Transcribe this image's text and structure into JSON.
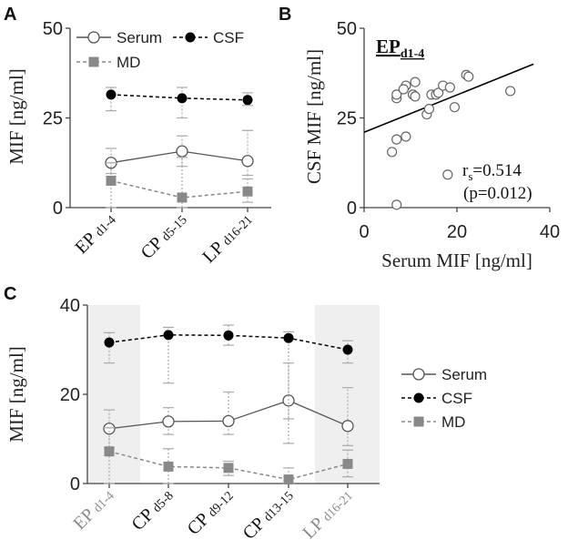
{
  "chart_data": [
    {
      "panel": "A",
      "type": "line",
      "ylabel": "MIF [ng/ml]",
      "ylim": [
        0,
        50
      ],
      "yticks": [
        "0",
        "25",
        "50"
      ],
      "categories": [
        {
          "main": "EP",
          "sub": "d1-4"
        },
        {
          "main": "CP",
          "sub": "d5-15"
        },
        {
          "main": "LP",
          "sub": "d16-21"
        }
      ],
      "series": [
        {
          "name": "Serum",
          "style": "solid",
          "marker": "open-circle",
          "color": "#555555",
          "values": [
            12.5,
            15.7,
            13.0
          ],
          "err_low": [
            9.5,
            11.5,
            9.0
          ],
          "err_high": [
            16.5,
            20.0,
            21.5
          ]
        },
        {
          "name": "CSF",
          "style": "dashed",
          "marker": "filled-circle",
          "color": "#000000",
          "values": [
            31.5,
            30.5,
            30.0
          ],
          "err_low": [
            27.0,
            25.0,
            28.5
          ],
          "err_high": [
            33.5,
            33.5,
            32.0
          ]
        },
        {
          "name": "MD",
          "style": "dashed",
          "marker": "square",
          "color": "#888888",
          "values": [
            7.5,
            2.8,
            4.5
          ],
          "err_low": [
            0,
            0,
            1.5
          ],
          "err_high": [
            12.5,
            14.0,
            8.0
          ]
        }
      ]
    },
    {
      "panel": "B",
      "type": "scatter",
      "title_main": "EP",
      "title_sub": "d1-4",
      "xlabel": "Serum MIF [ng/ml]",
      "ylabel": "CSF MIF [ng/ml]",
      "xlim": [
        0,
        40
      ],
      "ylim": [
        0,
        50
      ],
      "xticks": [
        "0",
        "20",
        "40"
      ],
      "yticks": [
        "0",
        "25",
        "50"
      ],
      "points": [
        [
          7,
          0.8
        ],
        [
          6,
          15.5
        ],
        [
          7,
          19
        ],
        [
          9,
          19.8
        ],
        [
          7,
          30.5
        ],
        [
          7,
          31.5
        ],
        [
          9,
          34
        ],
        [
          8.5,
          33
        ],
        [
          10.5,
          31.5
        ],
        [
          11,
          31
        ],
        [
          11,
          35
        ],
        [
          13.5,
          26
        ],
        [
          14,
          27.5
        ],
        [
          14.5,
          31.5
        ],
        [
          15.5,
          31.5
        ],
        [
          16,
          32
        ],
        [
          17,
          34
        ],
        [
          18,
          9.2
        ],
        [
          18.5,
          33.5
        ],
        [
          19.5,
          28
        ],
        [
          22,
          37
        ],
        [
          22.5,
          36.5
        ],
        [
          31.5,
          32.5
        ]
      ],
      "fit_line": {
        "x": [
          0,
          36.5
        ],
        "y": [
          21,
          40
        ]
      },
      "annotation_rs_label": "r",
      "annotation_rs_sub": "s",
      "annotation_rs_value": "=0.514",
      "annotation_p": "(p=0.012)"
    },
    {
      "panel": "C",
      "type": "line",
      "ylabel": "MIF [ng/ml]",
      "ylim": [
        0,
        40
      ],
      "yticks": [
        "0",
        "20",
        "40"
      ],
      "shaded_categories": [
        0,
        4
      ],
      "categories": [
        {
          "main": "EP",
          "sub": "d1-4"
        },
        {
          "main": "CP",
          "sub": "d5-8"
        },
        {
          "main": "CP",
          "sub": "d9-12"
        },
        {
          "main": "CP",
          "sub": "d13-15"
        },
        {
          "main": "LP",
          "sub": "d16-21"
        }
      ],
      "series": [
        {
          "name": "Serum",
          "style": "solid",
          "marker": "open-circle",
          "color": "#555555",
          "values": [
            12.3,
            13.9,
            14.0,
            18.6,
            12.9
          ],
          "err_low": [
            8.0,
            11.0,
            11.0,
            9.0,
            8.5
          ],
          "err_high": [
            16.5,
            17.0,
            20.5,
            27.0,
            21.5
          ]
        },
        {
          "name": "CSF",
          "style": "dashed",
          "marker": "filled-circle",
          "color": "#000000",
          "values": [
            31.6,
            33.3,
            33.2,
            32.6,
            30.0
          ],
          "err_low": [
            27.0,
            22.5,
            31.0,
            14.5,
            27.0
          ],
          "err_high": [
            33.8,
            35.0,
            35.5,
            34.0,
            32.0
          ]
        },
        {
          "name": "MD",
          "style": "dashed",
          "marker": "square",
          "color": "#888888",
          "values": [
            7.2,
            3.8,
            3.5,
            0.9,
            4.4
          ],
          "err_low": [
            0,
            0,
            1.8,
            0,
            1.5
          ],
          "err_high": [
            12.5,
            7.8,
            5.0,
            3.5,
            7.5
          ]
        }
      ]
    }
  ]
}
